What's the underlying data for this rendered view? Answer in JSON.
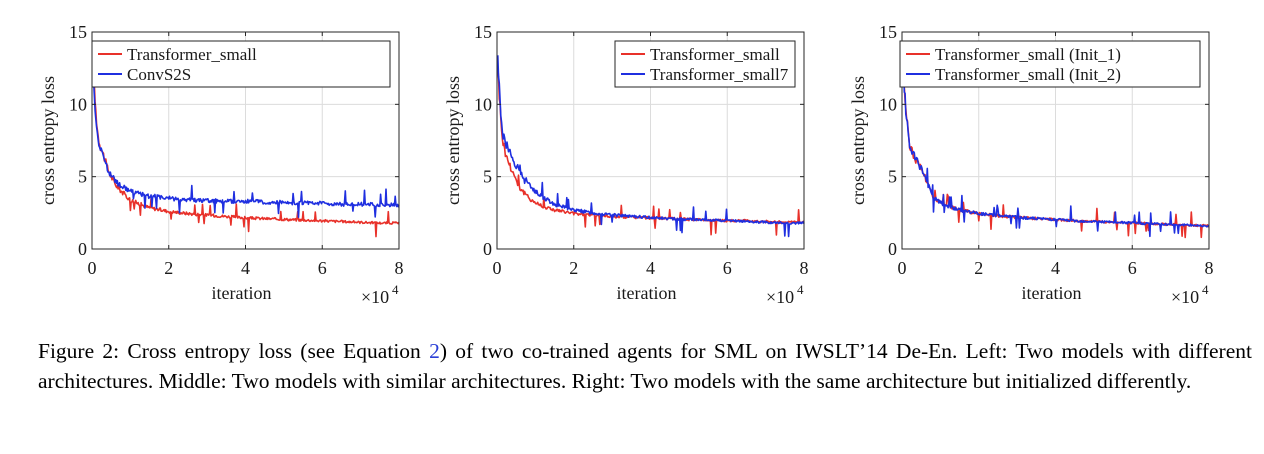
{
  "chart_data": [
    {
      "type": "line",
      "xlabel": "iteration",
      "ylabel": "cross entropy loss",
      "x_multiplier": "×10",
      "x_multiplier_exp": "4",
      "xlim": [
        0,
        8
      ],
      "ylim": [
        0,
        15
      ],
      "xticks": [
        "0",
        "2",
        "4",
        "6",
        "8"
      ],
      "yticks": [
        "0",
        "5",
        "10",
        "15"
      ],
      "grid": true,
      "legend_position": "top-right",
      "series": [
        {
          "name": "Transformer_small",
          "color": "#e8312a",
          "x": [
            0.02,
            0.05,
            0.1,
            0.15,
            0.2,
            0.3,
            0.4,
            0.5,
            0.6,
            0.8,
            1.0,
            1.25,
            1.5,
            2.0,
            2.5,
            3.0,
            3.5,
            4.0,
            4.5,
            5.0,
            5.5,
            6.0,
            6.5,
            7.0,
            7.5,
            8.0
          ],
          "y": [
            13.5,
            11.5,
            9.5,
            8.0,
            7.3,
            6.5,
            5.6,
            5.0,
            4.5,
            3.9,
            3.4,
            3.1,
            2.85,
            2.6,
            2.45,
            2.35,
            2.25,
            2.15,
            2.1,
            2.05,
            2.0,
            1.95,
            1.9,
            1.85,
            1.8,
            1.8
          ]
        },
        {
          "name": "ConvS2S",
          "color": "#1f2fe0",
          "x": [
            0.02,
            0.05,
            0.1,
            0.15,
            0.2,
            0.3,
            0.4,
            0.5,
            0.6,
            0.8,
            1.0,
            1.25,
            1.5,
            2.0,
            2.5,
            3.0,
            3.5,
            4.0,
            4.5,
            5.0,
            5.5,
            6.0,
            6.5,
            7.0,
            7.5,
            8.0
          ],
          "y": [
            12.8,
            11.0,
            9.2,
            7.8,
            7.0,
            6.4,
            5.6,
            5.1,
            4.7,
            4.3,
            4.0,
            3.8,
            3.65,
            3.5,
            3.4,
            3.35,
            3.3,
            3.3,
            3.25,
            3.2,
            3.2,
            3.15,
            3.1,
            3.1,
            3.05,
            3.05
          ]
        }
      ]
    },
    {
      "type": "line",
      "xlabel": "iteration",
      "ylabel": "cross entropy loss",
      "x_multiplier": "×10",
      "x_multiplier_exp": "4",
      "xlim": [
        0,
        8
      ],
      "ylim": [
        0,
        15
      ],
      "xticks": [
        "0",
        "2",
        "4",
        "6",
        "8"
      ],
      "yticks": [
        "0",
        "5",
        "10",
        "15"
      ],
      "grid": true,
      "legend_position": "top-right",
      "series": [
        {
          "name": "Transformer_small",
          "color": "#e8312a",
          "x": [
            0.02,
            0.05,
            0.1,
            0.15,
            0.2,
            0.3,
            0.4,
            0.5,
            0.6,
            0.8,
            1.0,
            1.25,
            1.5,
            2.0,
            2.5,
            3.0,
            3.5,
            4.0,
            4.5,
            5.0,
            5.5,
            6.0,
            6.5,
            7.0,
            7.5,
            8.0
          ],
          "y": [
            13.0,
            11.0,
            9.0,
            7.5,
            6.8,
            6.0,
            5.4,
            4.8,
            4.2,
            3.6,
            3.2,
            2.9,
            2.7,
            2.45,
            2.35,
            2.25,
            2.2,
            2.15,
            2.1,
            2.05,
            2.0,
            1.95,
            1.95,
            1.9,
            1.85,
            1.85
          ]
        },
        {
          "name": "Transformer_small7",
          "color": "#1f2fe0",
          "x": [
            0.02,
            0.05,
            0.1,
            0.15,
            0.2,
            0.3,
            0.4,
            0.5,
            0.6,
            0.8,
            1.0,
            1.25,
            1.5,
            2.0,
            2.5,
            3.0,
            3.5,
            4.0,
            4.5,
            5.0,
            5.5,
            6.0,
            6.5,
            7.0,
            7.5,
            8.0
          ],
          "y": [
            13.5,
            11.5,
            9.5,
            8.0,
            7.4,
            6.9,
            6.3,
            5.8,
            5.3,
            4.6,
            4.0,
            3.5,
            3.1,
            2.7,
            2.5,
            2.35,
            2.25,
            2.2,
            2.1,
            2.05,
            2.0,
            1.95,
            1.9,
            1.85,
            1.8,
            1.8
          ]
        }
      ]
    },
    {
      "type": "line",
      "xlabel": "iteration",
      "ylabel": "cross entropy loss",
      "x_multiplier": "×10",
      "x_multiplier_exp": "4",
      "xlim": [
        0,
        8
      ],
      "ylim": [
        0,
        15
      ],
      "xticks": [
        "0",
        "2",
        "4",
        "6",
        "8"
      ],
      "yticks": [
        "0",
        "5",
        "10",
        "15"
      ],
      "grid": true,
      "legend_position": "top-right",
      "series": [
        {
          "name": "Transformer_small (Init_1)",
          "color": "#e8312a",
          "x": [
            0.02,
            0.05,
            0.1,
            0.15,
            0.2,
            0.3,
            0.4,
            0.5,
            0.6,
            0.7,
            0.8,
            1.0,
            1.25,
            1.5,
            2.0,
            2.5,
            3.0,
            3.5,
            4.0,
            4.5,
            5.0,
            5.5,
            6.0,
            6.5,
            7.0,
            7.5,
            8.0
          ],
          "y": [
            13.8,
            11.5,
            9.8,
            8.2,
            7.2,
            6.5,
            6.0,
            5.6,
            5.0,
            4.3,
            3.6,
            3.2,
            2.9,
            2.7,
            2.45,
            2.3,
            2.2,
            2.1,
            2.05,
            1.95,
            1.9,
            1.85,
            1.8,
            1.75,
            1.7,
            1.65,
            1.6
          ]
        },
        {
          "name": "Transformer_small (Init_2)",
          "color": "#1f2fe0",
          "x": [
            0.02,
            0.05,
            0.1,
            0.15,
            0.2,
            0.3,
            0.4,
            0.5,
            0.6,
            0.7,
            0.8,
            1.0,
            1.25,
            1.5,
            2.0,
            2.5,
            3.0,
            3.5,
            4.0,
            4.5,
            5.0,
            5.5,
            6.0,
            6.5,
            7.0,
            7.5,
            8.0
          ],
          "y": [
            13.8,
            11.5,
            9.7,
            8.1,
            7.1,
            6.5,
            6.0,
            5.6,
            5.0,
            4.3,
            3.6,
            3.2,
            2.9,
            2.7,
            2.45,
            2.3,
            2.2,
            2.1,
            2.05,
            1.95,
            1.9,
            1.85,
            1.8,
            1.75,
            1.7,
            1.65,
            1.6
          ]
        }
      ]
    }
  ],
  "caption": {
    "before_ref": "Figure 2: Cross entropy loss (see Equation ",
    "ref": "2",
    "after_ref": ") of two co-trained agents for SML on IWSLT’14 De-En. Left: Two models with different architectures. Middle: Two models with similar architectures. Right: Two models with the same architecture but initialized differently."
  }
}
